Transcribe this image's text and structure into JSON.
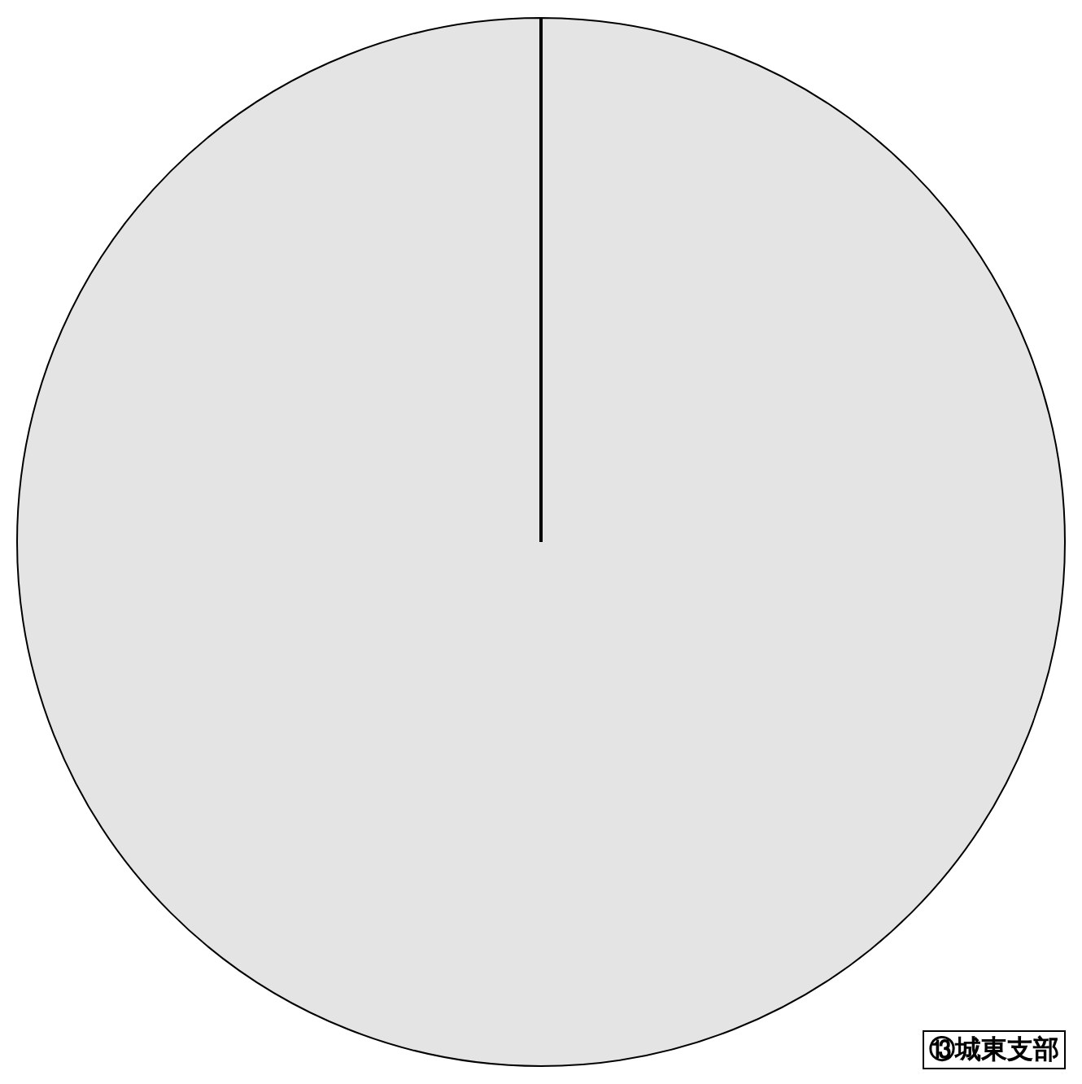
{
  "chart_data": {
    "type": "pie",
    "categories": [
      "⑬城東支部"
    ],
    "values": [
      100
    ],
    "colors": [
      "#e4e4e4"
    ],
    "legend": false,
    "needle": "⑬城東支部"
  }
}
